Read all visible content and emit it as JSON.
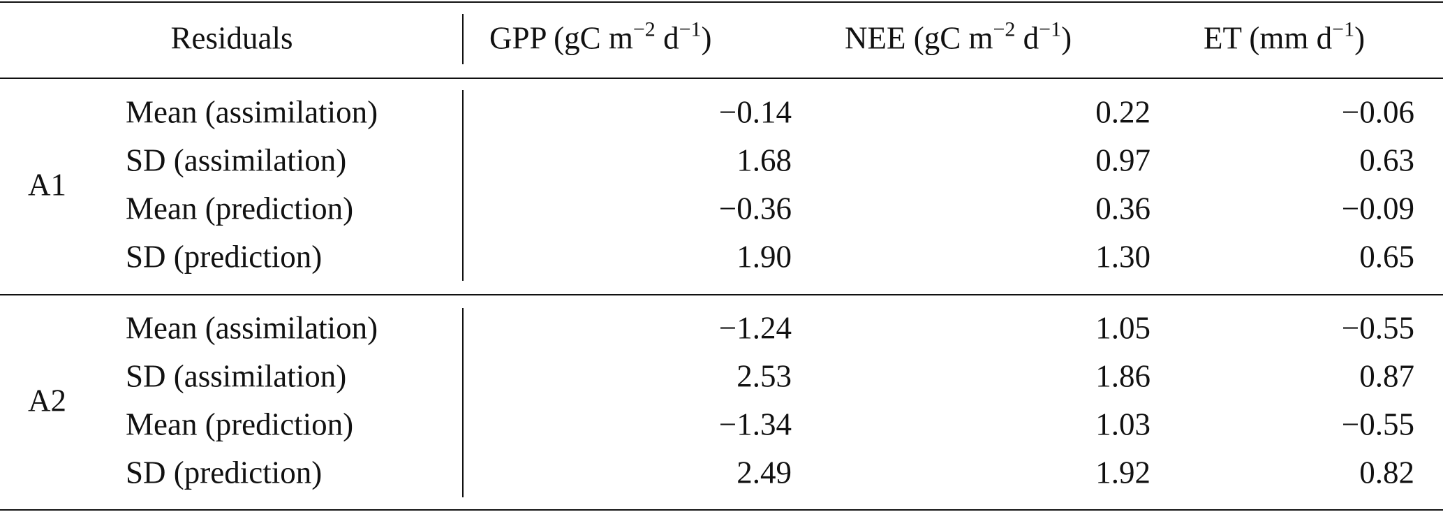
{
  "header": {
    "residuals": "Residuals",
    "columns": [
      [
        {
          "text": "GPP (gC m"
        },
        {
          "sup": "−2"
        },
        {
          "text": " d"
        },
        {
          "sup": "−1"
        },
        {
          "text": ")"
        }
      ],
      [
        {
          "text": "NEE (gC m"
        },
        {
          "sup": "−2"
        },
        {
          "text": " d"
        },
        {
          "sup": "−1"
        },
        {
          "text": ")"
        }
      ],
      [
        {
          "text": "ET (mm d"
        },
        {
          "sup": "−1"
        },
        {
          "text": ")"
        }
      ]
    ]
  },
  "groups": [
    {
      "label": "A1",
      "rows": [
        {
          "label": "Mean (assimilation)",
          "values": [
            "−0.14",
            "0.22",
            "−0.06"
          ]
        },
        {
          "label": "SD (assimilation)",
          "values": [
            "1.68",
            "0.97",
            "0.63"
          ]
        },
        {
          "label": "Mean (prediction)",
          "values": [
            "−0.36",
            "0.36",
            "−0.09"
          ]
        },
        {
          "label": "SD (prediction)",
          "values": [
            "1.90",
            "1.30",
            "0.65"
          ]
        }
      ]
    },
    {
      "label": "A2",
      "rows": [
        {
          "label": "Mean (assimilation)",
          "values": [
            "−1.24",
            "1.05",
            "−0.55"
          ]
        },
        {
          "label": "SD (assimilation)",
          "values": [
            "2.53",
            "1.86",
            "0.87"
          ]
        },
        {
          "label": "Mean (prediction)",
          "values": [
            "−1.34",
            "1.03",
            "−0.55"
          ]
        },
        {
          "label": "SD (prediction)",
          "values": [
            "2.49",
            "1.92",
            "0.82"
          ]
        }
      ]
    }
  ]
}
